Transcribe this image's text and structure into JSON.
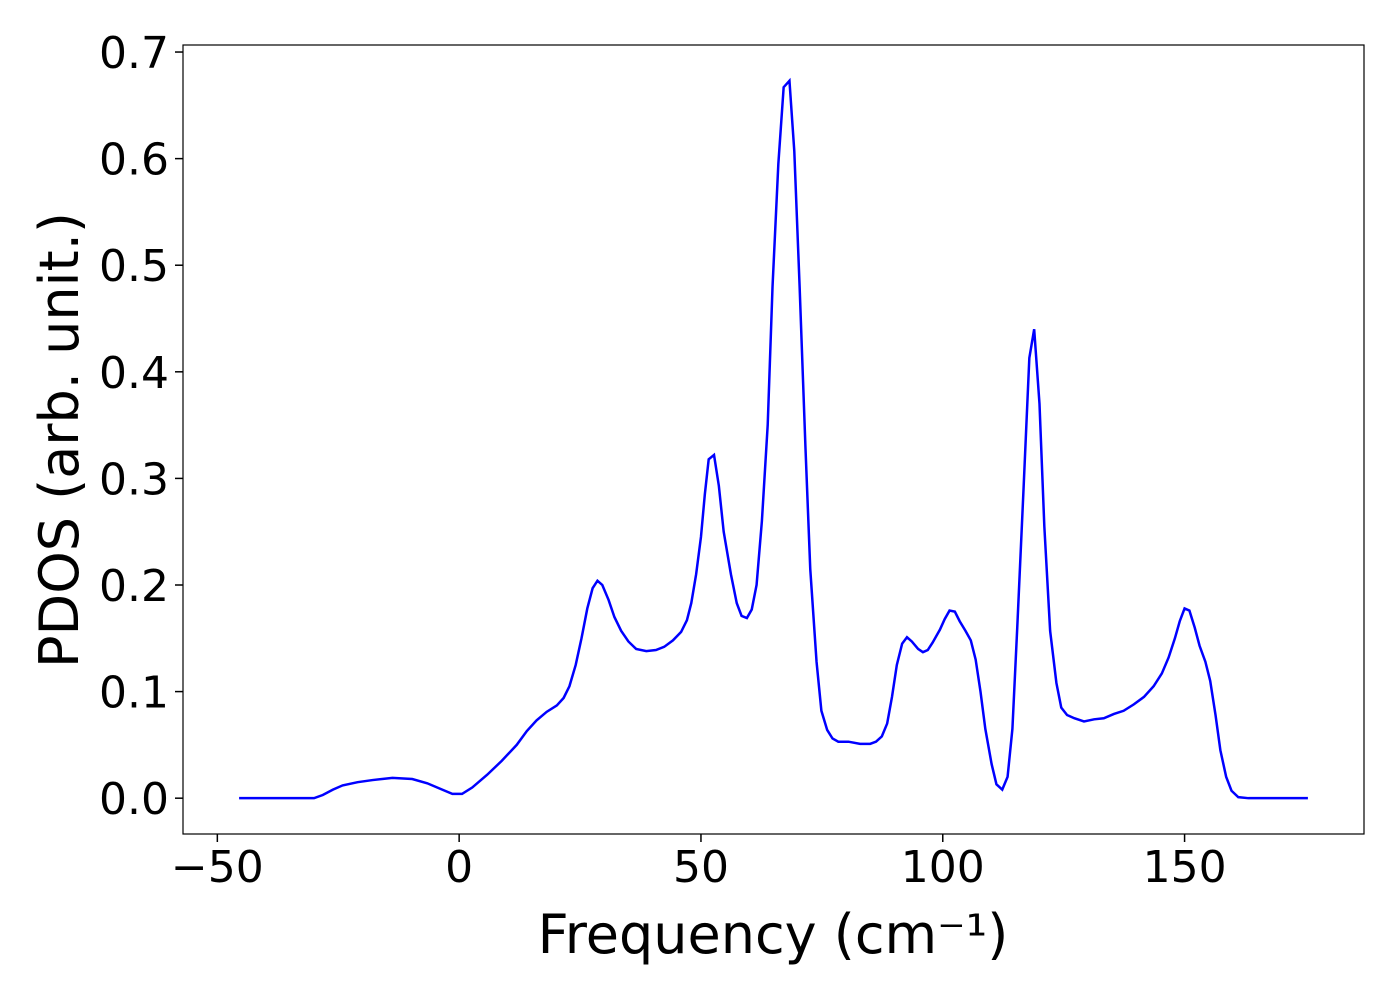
{
  "chart_data": {
    "type": "line",
    "xlabel": "Frequency (cm⁻¹)",
    "ylabel": "PDOS (arb. unit.)",
    "x": [
      -45.5,
      -30,
      -28.2,
      -26.1,
      -24.1,
      -21,
      -17.9,
      -13.8,
      -9.7,
      -6.6,
      -3.5,
      -1.4,
      0.6,
      2.7,
      5.8,
      8.8,
      11.9,
      14,
      16,
      18.1,
      20.2,
      21.6,
      22.8,
      24.1,
      25.3,
      26.5,
      27.6,
      28.6,
      29.6,
      30.9,
      32.1,
      33.5,
      35,
      36.6,
      38.7,
      40.7,
      42.4,
      44.2,
      45.9,
      47.1,
      48,
      49,
      50,
      50.8,
      51.6,
      52.7,
      53.7,
      54.7,
      56.2,
      57.4,
      58.4,
      59.5,
      60.5,
      61.5,
      62.6,
      63.8,
      64.8,
      66,
      67.1,
      68.3,
      69.3,
      70.4,
      71.6,
      72.6,
      73.9,
      74.9,
      76.1,
      77.2,
      78.4,
      80.5,
      82.9,
      85,
      86.2,
      87.4,
      88.5,
      89.5,
      90.5,
      91.6,
      92.6,
      93.6,
      94.9,
      95.9,
      96.9,
      97.9,
      99.4,
      100.4,
      101.4,
      102.5,
      103.5,
      104.7,
      105.8,
      106.8,
      107.8,
      108.8,
      110.1,
      111.1,
      112.3,
      113.4,
      114.4,
      115.4,
      116.7,
      117.9,
      118.9,
      120,
      121,
      122.2,
      123.5,
      124.5,
      125.7,
      127.2,
      129.2,
      131.3,
      133.3,
      135.4,
      137.4,
      139.5,
      141.6,
      143.6,
      145.3,
      146.7,
      148,
      149,
      150,
      151,
      152.1,
      153.1,
      154.3,
      155.3,
      156.4,
      157.4,
      158.6,
      159.7,
      161.1,
      163.2,
      175.5
    ],
    "series": [
      {
        "color": "#0000ff",
        "values": [
          0,
          0,
          0.003,
          0.008,
          0.012,
          0.015,
          0.017,
          0.019,
          0.018,
          0.014,
          0.008,
          0.004,
          0.004,
          0.01,
          0.022,
          0.035,
          0.05,
          0.063,
          0.073,
          0.081,
          0.087,
          0.094,
          0.105,
          0.125,
          0.15,
          0.178,
          0.197,
          0.204,
          0.2,
          0.186,
          0.17,
          0.157,
          0.147,
          0.14,
          0.138,
          0.139,
          0.142,
          0.148,
          0.156,
          0.167,
          0.183,
          0.21,
          0.245,
          0.285,
          0.318,
          0.322,
          0.293,
          0.25,
          0.21,
          0.183,
          0.171,
          0.169,
          0.177,
          0.2,
          0.26,
          0.35,
          0.48,
          0.595,
          0.667,
          0.673,
          0.607,
          0.48,
          0.33,
          0.215,
          0.128,
          0.082,
          0.064,
          0.056,
          0.053,
          0.053,
          0.051,
          0.051,
          0.053,
          0.058,
          0.07,
          0.095,
          0.125,
          0.145,
          0.151,
          0.147,
          0.14,
          0.137,
          0.139,
          0.146,
          0.158,
          0.168,
          0.176,
          0.175,
          0.166,
          0.157,
          0.148,
          0.13,
          0.1,
          0.065,
          0.032,
          0.013,
          0.008,
          0.02,
          0.065,
          0.16,
          0.29,
          0.413,
          0.44,
          0.37,
          0.255,
          0.157,
          0.108,
          0.085,
          0.078,
          0.075,
          0.072,
          0.074,
          0.075,
          0.079,
          0.082,
          0.088,
          0.095,
          0.105,
          0.117,
          0.132,
          0.15,
          0.166,
          0.178,
          0.176,
          0.16,
          0.143,
          0.128,
          0.11,
          0.078,
          0.045,
          0.02,
          0.007,
          0.001,
          0,
          0
        ]
      }
    ],
    "xlim": [
      -57.1,
      187.1
    ],
    "xticks": [
      {
        "value": -50,
        "label": "−50"
      },
      0,
      50,
      100,
      150
    ],
    "ylim": [
      -0.0336,
      0.7066
    ],
    "yticks": [
      {
        "value": 0,
        "label": "0.0"
      },
      0.1,
      0.2,
      0.3,
      0.4,
      0.5,
      0.6,
      0.7
    ]
  }
}
